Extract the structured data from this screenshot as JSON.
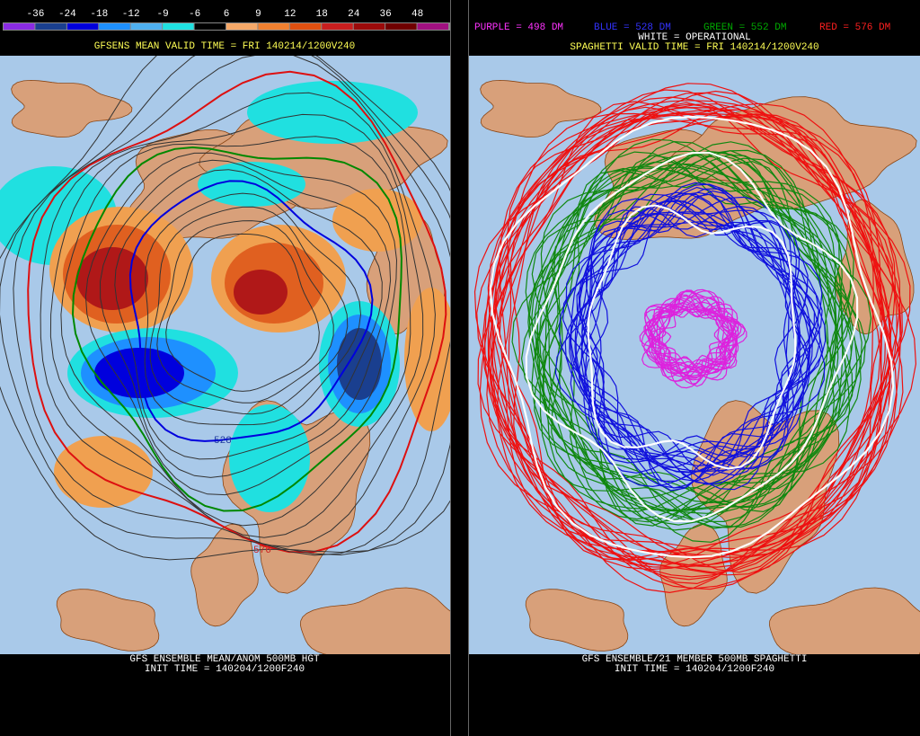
{
  "left_panel": {
    "color_scale": [
      -36,
      -24,
      -18,
      -12,
      -9,
      -6,
      6,
      9,
      12,
      18,
      24,
      36,
      48
    ],
    "title": "GFSENS MEAN VALID TIME = FRI 140214/1200V240",
    "contour_labels": [
      "528",
      "576"
    ],
    "footer": [
      "GFS ENSEMBLE MEAN/ANOM 500MB HGT",
      "INIT TIME = 140204/1200F240"
    ]
  },
  "right_panel": {
    "legend": [
      "PURPLE = 498 DM",
      "BLUE = 528 DM",
      "GREEN = 552 DM",
      "RED = 576 DM"
    ],
    "operational": "WHITE = OPERATIONAL",
    "title": "SPAGHETTI VALID TIME = FRI 140214/1200V240",
    "footer": [
      "GFS ENSEMBLE/21 MEMBER 500MB SPAGHETTI",
      "INIT TIME = 140204/1200F240"
    ]
  }
}
